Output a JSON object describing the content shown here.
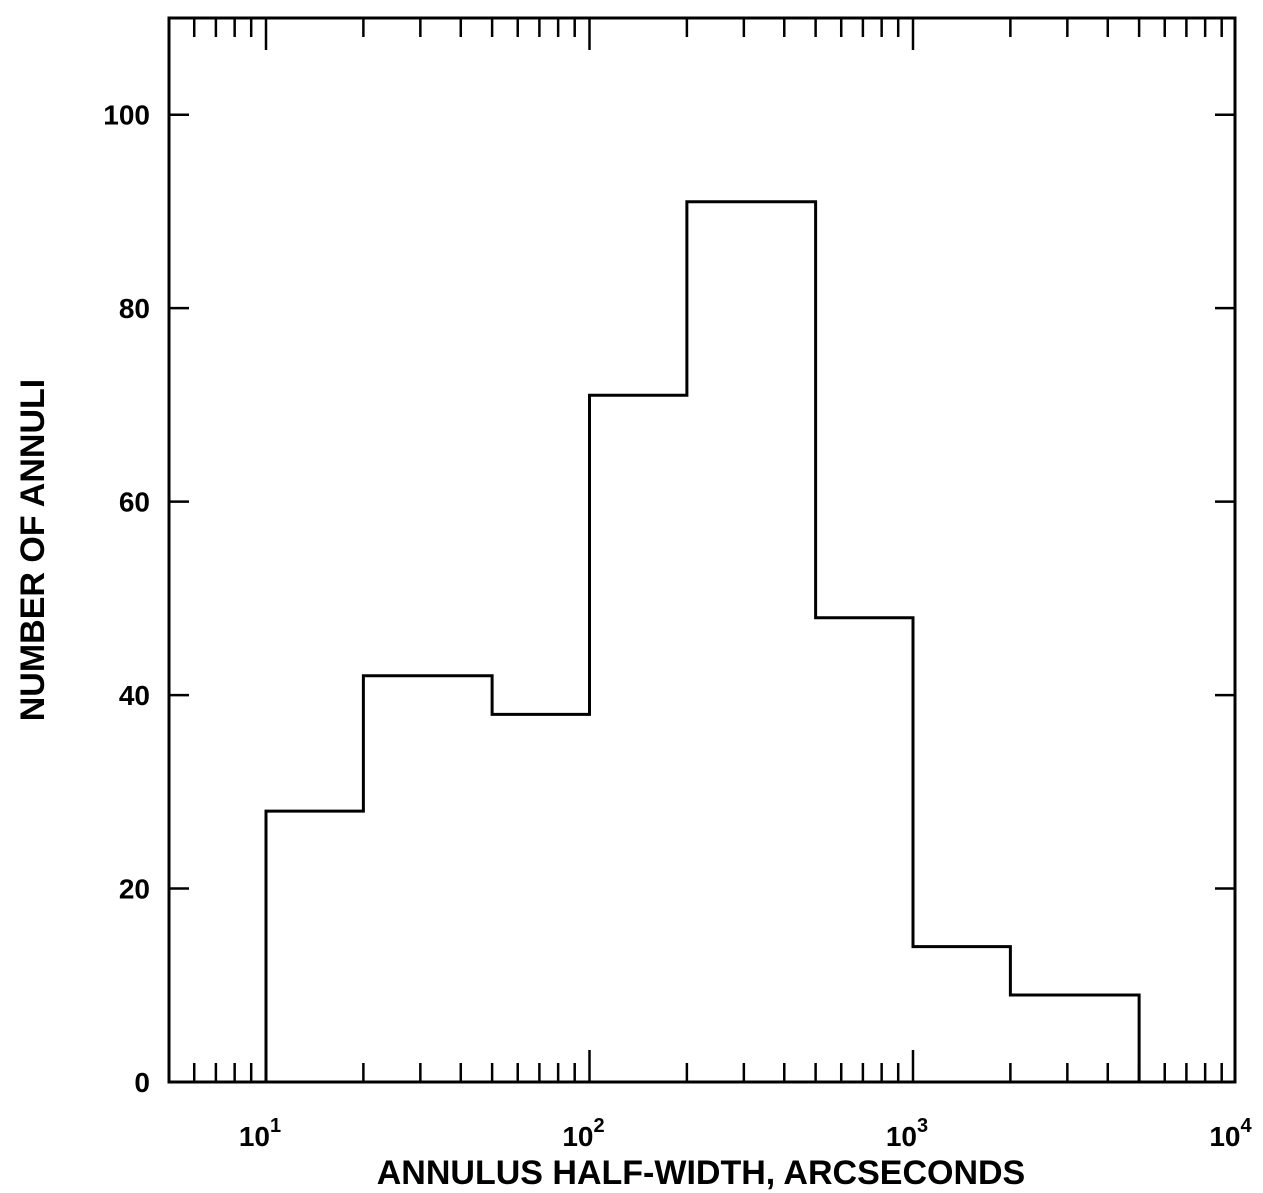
{
  "chart_data": {
    "type": "histogram",
    "title": "",
    "xlabel": "ANNULUS HALF-WIDTH, ARCSECONDS",
    "ylabel": "NUMBER OF ANNULI",
    "x_scale": "log",
    "xlim": [
      5,
      10000
    ],
    "ylim": [
      0,
      110
    ],
    "grid": false,
    "legend": "none",
    "line_color": "#000000",
    "x_ticks": [
      {
        "base": "10",
        "exp": "1",
        "value": 10
      },
      {
        "base": "10",
        "exp": "2",
        "value": 100
      },
      {
        "base": "10",
        "exp": "3",
        "value": 1000
      },
      {
        "base": "10",
        "exp": "4",
        "value": 10000
      }
    ],
    "y_ticks": [
      "0",
      "20",
      "40",
      "60",
      "80",
      "100"
    ],
    "bins": [
      {
        "x0": 10,
        "x1": 20,
        "count": 28
      },
      {
        "x0": 20,
        "x1": 50,
        "count": 42
      },
      {
        "x0": 50,
        "x1": 100,
        "count": 38
      },
      {
        "x0": 100,
        "x1": 200,
        "count": 71
      },
      {
        "x0": 200,
        "x1": 500,
        "count": 91
      },
      {
        "x0": 500,
        "x1": 1000,
        "count": 48
      },
      {
        "x0": 1000,
        "x1": 2000,
        "count": 14
      },
      {
        "x0": 2000,
        "x1": 5000,
        "count": 9
      }
    ]
  }
}
